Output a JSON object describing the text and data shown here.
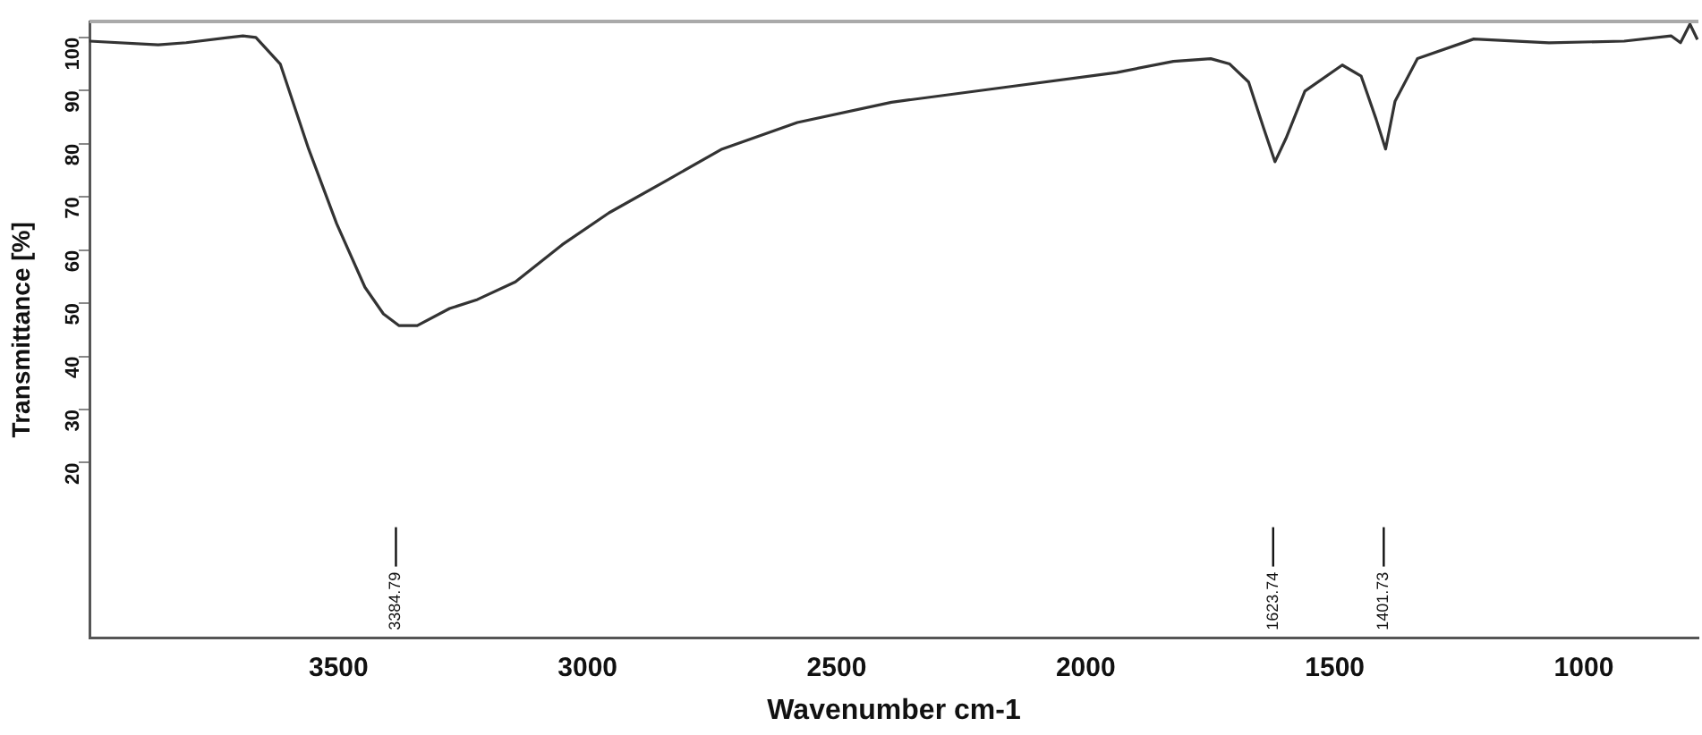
{
  "chart_data": {
    "type": "line",
    "xlabel": "Wavenumber cm-1",
    "ylabel": "Transmittance [%]",
    "xlim": [
      4000,
      770
    ],
    "xticks": [
      3500,
      3000,
      2500,
      2000,
      1500,
      1000
    ],
    "ylim": [
      -13,
      103
    ],
    "yticks": [
      20,
      30,
      40,
      50,
      60,
      70,
      80,
      90,
      100
    ],
    "grid": false,
    "legend": false,
    "marker": "none",
    "line_style": "solid",
    "series": [
      {
        "color": "#333333",
        "x": [
          4000,
          3862,
          3806,
          3692,
          3666,
          3617,
          3560,
          3504,
          3447,
          3410,
          3379,
          3342,
          3277,
          3221,
          3145,
          3051,
          2957,
          2843,
          2730,
          2579,
          2390,
          2164,
          1938,
          1824,
          1749,
          1711,
          1673,
          1643,
          1620,
          1598,
          1560,
          1485,
          1447,
          1417,
          1398,
          1379,
          1334,
          1221,
          1070,
          919,
          825,
          806,
          787,
          772
        ],
        "values": [
          99.3,
          98.6,
          99,
          100.3,
          100,
          95,
          79,
          65,
          53,
          48,
          45.8,
          45.8,
          49,
          50.7,
          54,
          61,
          67,
          73,
          79,
          84,
          87.8,
          90.6,
          93.4,
          95.5,
          96,
          95,
          91.6,
          83,
          76.6,
          81,
          89.9,
          94.8,
          92.7,
          84.6,
          79,
          88,
          96,
          99.7,
          99,
          99.3,
          100.3,
          99,
          102.5,
          99.6
        ]
      }
    ],
    "annotations": [
      {
        "text": "3384.79",
        "x": 3384.79
      },
      {
        "text": "1623.74",
        "x": 1623.74
      },
      {
        "text": "1401.73",
        "x": 1401.73
      }
    ]
  }
}
